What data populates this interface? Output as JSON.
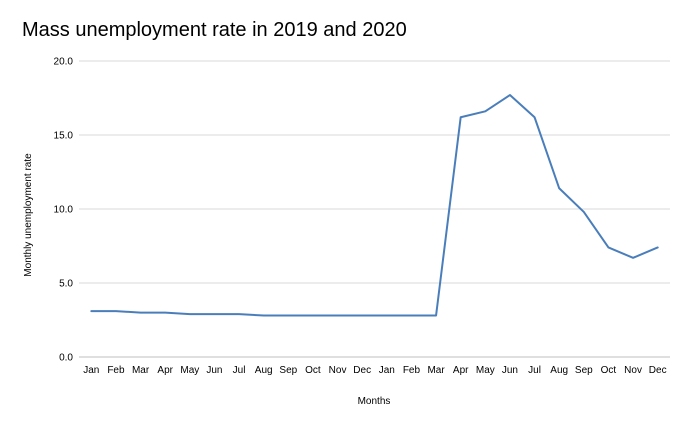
{
  "chart_data": {
    "type": "line",
    "title": "Mass unemployment rate in 2019 and 2020",
    "xlabel": "Months",
    "ylabel": "Monthly unemployment rate",
    "ylim": [
      0,
      20
    ],
    "yticks": [
      "0.0",
      "5.0",
      "10.0",
      "15.0",
      "20.0"
    ],
    "grid": true,
    "legend": "none",
    "categories": [
      "Jan",
      "Feb",
      "Mar",
      "Apr",
      "May",
      "Jun",
      "Jul",
      "Aug",
      "Sep",
      "Oct",
      "Nov",
      "Dec",
      "Jan",
      "Feb",
      "Mar",
      "Apr",
      "May",
      "Jun",
      "Jul",
      "Aug",
      "Sep",
      "Oct",
      "Nov",
      "Dec"
    ],
    "series": [
      {
        "color": "#4a7ebb",
        "values": [
          3.1,
          3.1,
          3.0,
          3.0,
          2.9,
          2.9,
          2.9,
          2.8,
          2.8,
          2.8,
          2.8,
          2.8,
          2.8,
          2.8,
          2.8,
          16.2,
          16.6,
          17.7,
          16.2,
          11.4,
          9.8,
          7.4,
          6.7,
          7.4
        ]
      }
    ]
  }
}
